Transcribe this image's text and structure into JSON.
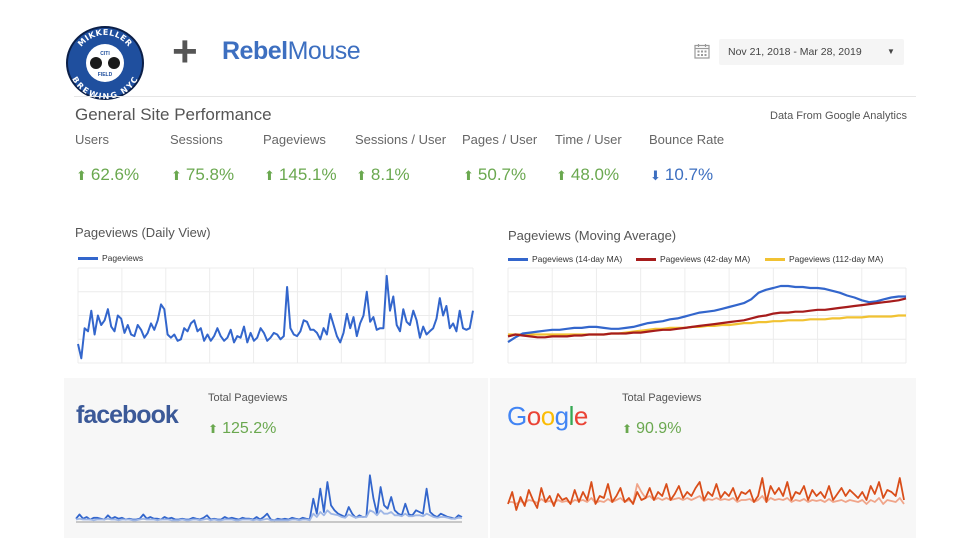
{
  "header": {
    "logo_text_top": "MIKKELLER",
    "logo_text_bottom": "BREWING NYC",
    "logo_text_center_top": "CITI",
    "logo_text_center_bottom": "FIELD",
    "plus": "+",
    "brand_part1": "Rebel",
    "brand_part2": "Mouse",
    "date_range": "Nov 21, 2018 - Mar 28, 2019",
    "icons": {
      "calendar": "calendar-icon",
      "dropdown": "caret-down-icon"
    }
  },
  "section": {
    "title": "General Site Performance",
    "source": "Data From Google Analytics"
  },
  "kpis": [
    {
      "label": "Users",
      "value": "62.6%",
      "direction": "up",
      "color": "#6aa84f"
    },
    {
      "label": "Sessions",
      "value": "75.8%",
      "direction": "up",
      "color": "#6aa84f"
    },
    {
      "label": "Pageviews",
      "value": "145.1%",
      "direction": "up",
      "color": "#6aa84f"
    },
    {
      "label": "Sessions / User",
      "value": "8.1%",
      "direction": "up",
      "color": "#6aa84f"
    },
    {
      "label": "Pages / User",
      "value": "50.7%",
      "direction": "up",
      "color": "#6aa84f"
    },
    {
      "label": "Time / User",
      "value": "48.0%",
      "direction": "up",
      "color": "#6aa84f"
    },
    {
      "label": "Bounce Rate",
      "value": "10.7%",
      "direction": "down",
      "color": "#3d6fc0"
    }
  ],
  "arrows": {
    "up": "⬆",
    "down": "⬇"
  },
  "chart_data": [
    {
      "type": "line",
      "title": "Pageviews (Daily View)",
      "series": [
        {
          "name": "Pageviews",
          "color": "#3366cc",
          "values": [
            12,
            3,
            22,
            20,
            33,
            18,
            30,
            24,
            27,
            34,
            23,
            20,
            30,
            28,
            19,
            24,
            18,
            17,
            24,
            21,
            16,
            19,
            25,
            21,
            27,
            37,
            34,
            18,
            16,
            18,
            14,
            15,
            22,
            20,
            25,
            27,
            20,
            22,
            14,
            18,
            14,
            17,
            22,
            17,
            14,
            16,
            21,
            13,
            17,
            16,
            23,
            13,
            19,
            14,
            16,
            22,
            19,
            14,
            16,
            19,
            18,
            15,
            17,
            48,
            22,
            18,
            17,
            20,
            27,
            26,
            21,
            21,
            19,
            15,
            22,
            18,
            31,
            24,
            17,
            13,
            19,
            31,
            22,
            29,
            17,
            25,
            30,
            45,
            26,
            29,
            21,
            22,
            22,
            55,
            33,
            42,
            24,
            20,
            34,
            26,
            24,
            33,
            27,
            16,
            23,
            18,
            20,
            22,
            28,
            41,
            30,
            36,
            22,
            25,
            20,
            33,
            22,
            21,
            22,
            33
          ]
        }
      ],
      "legend_position": "top-left",
      "grid": true
    },
    {
      "type": "line",
      "title": "Pageviews (Moving Average)",
      "series": [
        {
          "name": "Pageviews (14-day MA)",
          "color": "#3366cc",
          "values": [
            22,
            27,
            31,
            32,
            33,
            34,
            35,
            35,
            36,
            37,
            37,
            38,
            38,
            37,
            36,
            36,
            37,
            38,
            40,
            42,
            43,
            44,
            46,
            47,
            49,
            51,
            53,
            54,
            55,
            57,
            59,
            61,
            63,
            67,
            74,
            77,
            79,
            81,
            81,
            80,
            80,
            79,
            79,
            78,
            76,
            74,
            71,
            69,
            66,
            64,
            65,
            67,
            69,
            70,
            70
          ]
        },
        {
          "name": "Pageviews (42-day MA)",
          "color": "#a61c1c",
          "values": [
            28,
            30,
            29,
            28,
            27,
            27,
            28,
            28,
            28,
            29,
            29,
            30,
            30,
            30,
            31,
            31,
            31,
            32,
            32,
            33,
            34,
            35,
            35,
            36,
            37,
            38,
            39,
            40,
            41,
            42,
            43,
            44,
            45,
            47,
            49,
            50,
            52,
            53,
            53,
            54,
            54,
            55,
            56,
            56,
            57,
            58,
            59,
            60,
            61,
            62,
            63,
            64,
            65,
            66,
            68
          ]
        },
        {
          "name": "Pageviews (112-day MA)",
          "color": "#f1c232",
          "values": [
            30,
            30,
            30,
            30,
            30,
            30,
            30,
            30,
            30,
            30,
            30,
            30,
            30,
            30,
            31,
            31,
            32,
            33,
            34,
            35,
            36,
            36,
            37,
            37,
            37,
            38,
            38,
            39,
            39,
            40,
            40,
            41,
            42,
            42,
            43,
            43,
            44,
            44,
            45,
            45,
            45,
            46,
            46,
            46,
            47,
            47,
            48,
            48,
            48,
            49,
            49,
            49,
            49,
            50,
            50
          ]
        }
      ],
      "legend_position": "top",
      "grid": true
    },
    {
      "type": "line",
      "title": "Total Pageviews",
      "panel": "facebook",
      "change": "125.2%",
      "series": [
        {
          "color": "#3366cc",
          "values": [
            4,
            9,
            4,
            6,
            3,
            5,
            5,
            4,
            3,
            8,
            4,
            6,
            4,
            5,
            3,
            4,
            3,
            3,
            4,
            9,
            4,
            6,
            4,
            4,
            3,
            6,
            4,
            5,
            3,
            3,
            4,
            3,
            3,
            5,
            4,
            3,
            5,
            8,
            3,
            4,
            3,
            3,
            6,
            4,
            5,
            4,
            3,
            5,
            4,
            4,
            3,
            6,
            3,
            6,
            10,
            3,
            2,
            4,
            3,
            4,
            3,
            5,
            4,
            3,
            5,
            4,
            3,
            28,
            10,
            40,
            12,
            48,
            20,
            14,
            10,
            8,
            6,
            18,
            10,
            5,
            8,
            6,
            7,
            56,
            28,
            10,
            42,
            20,
            16,
            30,
            14,
            10,
            8,
            22,
            9,
            8,
            14,
            12,
            10,
            40,
            12,
            8,
            6,
            10,
            8,
            6,
            5,
            4,
            8,
            6
          ]
        },
        {
          "color": "#9fb7e6",
          "values": [
            3,
            4,
            3,
            3,
            3,
            2,
            3,
            3,
            3,
            4,
            3,
            3,
            2,
            3,
            3,
            3,
            2,
            2,
            3,
            4,
            3,
            3,
            3,
            2,
            3,
            3,
            3,
            2,
            2,
            2,
            3,
            2,
            2,
            3,
            3,
            2,
            3,
            4,
            2,
            3,
            2,
            2,
            3,
            3,
            3,
            2,
            2,
            3,
            3,
            3,
            2,
            3,
            2,
            3,
            4,
            2,
            2,
            2,
            2,
            2,
            2,
            3,
            3,
            2,
            3,
            3,
            2,
            10,
            6,
            12,
            8,
            14,
            10,
            9,
            8,
            6,
            5,
            9,
            7,
            5,
            6,
            6,
            6,
            14,
            12,
            8,
            14,
            10,
            10,
            12,
            8,
            8,
            7,
            10,
            7,
            7,
            8,
            8,
            7,
            10,
            8,
            6,
            5,
            6,
            6,
            5,
            4,
            4,
            5,
            5
          ]
        }
      ]
    },
    {
      "type": "line",
      "title": "Total Pageviews",
      "panel": "google",
      "change": "90.9%",
      "series": [
        {
          "color": "#d94e1a",
          "values": [
            18,
            30,
            12,
            25,
            16,
            32,
            22,
            14,
            34,
            20,
            26,
            16,
            28,
            22,
            24,
            18,
            32,
            20,
            30,
            22,
            40,
            18,
            26,
            24,
            38,
            20,
            26,
            34,
            20,
            24,
            18,
            30,
            22,
            24,
            34,
            22,
            30,
            26,
            38,
            22,
            28,
            36,
            24,
            30,
            26,
            34,
            40,
            22,
            30,
            26,
            38,
            24,
            30,
            26,
            34,
            22,
            30,
            28,
            32,
            20,
            26,
            44,
            20,
            36,
            28,
            34,
            26,
            40,
            22,
            30,
            28,
            36,
            22,
            32,
            26,
            30,
            24,
            36,
            22,
            28,
            34,
            26,
            32,
            28,
            24,
            30,
            22,
            36,
            28,
            40,
            24,
            32,
            30,
            26,
            44,
            22
          ]
        },
        {
          "color": "#f0a58a",
          "values": [
            20,
            20,
            18,
            21,
            19,
            22,
            21,
            19,
            23,
            20,
            21,
            19,
            22,
            20,
            21,
            19,
            22,
            21,
            22,
            20,
            24,
            19,
            21,
            20,
            23,
            20,
            22,
            24,
            20,
            22,
            19,
            38,
            30,
            24,
            26,
            22,
            24,
            22,
            24,
            22,
            23,
            24,
            22,
            24,
            22,
            24,
            26,
            21,
            23,
            22,
            24,
            22,
            23,
            22,
            24,
            20,
            22,
            22,
            23,
            20,
            22,
            26,
            20,
            24,
            22,
            23,
            22,
            24,
            20,
            22,
            21,
            23,
            20,
            22,
            21,
            22,
            20,
            23,
            20,
            21,
            22,
            20,
            22,
            21,
            20,
            22,
            18,
            22,
            20,
            24,
            18,
            22,
            21,
            20,
            24,
            18
          ]
        }
      ]
    }
  ],
  "panels": {
    "facebook": {
      "logo": "facebook"
    },
    "google": {
      "logo": "Google"
    }
  },
  "google_logo_colors": [
    "#4285f4",
    "#ea4335",
    "#fbbc05",
    "#4285f4",
    "#34a853",
    "#ea4335"
  ]
}
